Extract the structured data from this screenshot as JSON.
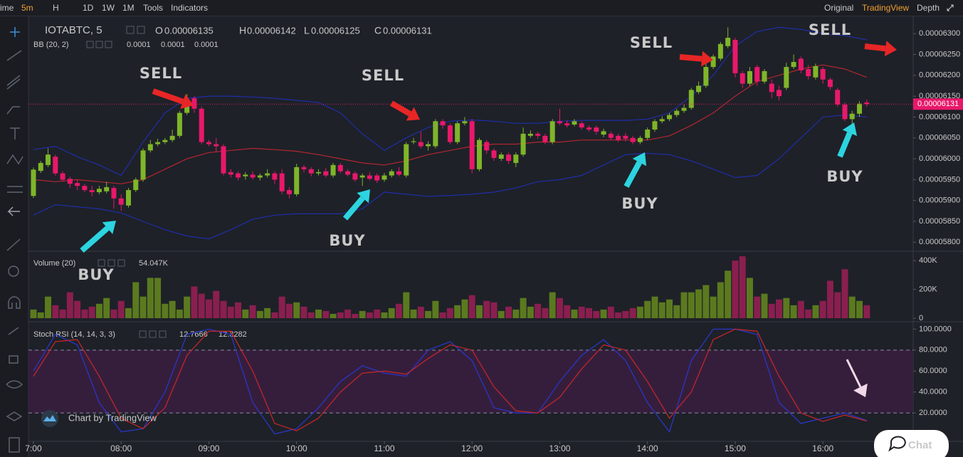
{
  "toolbar": {
    "left": [
      "ime",
      "5m",
      "H",
      "1D",
      "1W",
      "1M",
      "Tools",
      "Indicators"
    ],
    "right": [
      "Original",
      "TradingView",
      "Depth"
    ]
  },
  "branding": {
    "chart_by": "Chart by TradingView",
    "chat": "Chat"
  },
  "chart_data": [
    {
      "type": "candlestick",
      "title": "IOTABTC, 5",
      "ohlc_legend": [
        {
          "label": "O",
          "value": 6.135e-05
        },
        {
          "label": "H",
          "value": 6.142e-05
        },
        {
          "label": "L",
          "value": 6.125e-05
        },
        {
          "label": "C",
          "value": 6.131e-05
        }
      ],
      "colors": [
        "#7fb52a",
        "#e8186a"
      ],
      "xlim": [
        -0.68,
        120.35
      ],
      "xticks": [
        {
          "value": 0,
          "label": "7:00"
        },
        {
          "value": 12,
          "label": "08:00"
        },
        {
          "value": 24,
          "label": "09:00"
        },
        {
          "value": 36,
          "label": "10:00"
        },
        {
          "value": 48,
          "label": "11:00"
        },
        {
          "value": 60,
          "label": "12:00"
        },
        {
          "value": 72,
          "label": "13:00"
        },
        {
          "value": 84,
          "label": "14:00"
        },
        {
          "value": 96,
          "label": "15:00"
        },
        {
          "value": 108,
          "label": "16:00"
        }
      ],
      "ylim": [
        5.78e-05,
        6.343e-05
      ],
      "yticks": [
        {
          "value": 5.8e-05,
          "label": "0.00005800"
        },
        {
          "value": 5.85e-05,
          "label": "0.00005850"
        },
        {
          "value": 5.9e-05,
          "label": "0.00005900"
        },
        {
          "value": 5.95e-05,
          "label": "0.00005950"
        },
        {
          "value": 6e-05,
          "label": "0.00006000"
        },
        {
          "value": 6.05e-05,
          "label": "0.00006050"
        },
        {
          "value": 6.1e-05,
          "label": "0.00006100"
        },
        {
          "value": 6.15e-05,
          "label": "0.00006150"
        },
        {
          "value": 6.2e-05,
          "label": "0.00006200"
        },
        {
          "value": 6.25e-05,
          "label": "0.00006250"
        },
        {
          "value": 6.3e-05,
          "label": "0.00006300"
        }
      ],
      "open": [
        5.911e-05,
        5.971e-05,
        5.985e-05,
        6.005e-05,
        5.965e-05,
        5.952e-05,
        5.942e-05,
        5.935e-05,
        5.925e-05,
        5.92e-05,
        5.922e-05,
        5.93e-05,
        5.905e-05,
        5.888e-05,
        5.925e-05,
        5.95e-05,
        6.02e-05,
        6.035e-05,
        6.04e-05,
        6.045e-05,
        6.055e-05,
        6.11e-05,
        6.145e-05,
        6.12e-05,
        6.04e-05,
        6.035e-05,
        6.03e-05,
        5.968e-05,
        5.965e-05,
        5.958e-05,
        5.962e-05,
        5.955e-05,
        5.96e-05,
        5.965e-05,
        5.965e-05,
        5.925e-05,
        5.915e-05,
        5.98e-05,
        5.975e-05,
        5.965e-05,
        5.97e-05,
        5.96e-05,
        5.985e-05,
        5.97e-05,
        5.965e-05,
        5.955e-05,
        5.96e-05,
        5.96e-05,
        5.95e-05,
        5.96e-05,
        5.97e-05,
        5.96e-05,
        6.04e-05,
        6.04e-05,
        6.03e-05,
        6.03e-05,
        6.09e-05,
        6.08e-05,
        6.04e-05,
        6.085e-05,
        6.09e-05,
        5.975e-05,
        6.04e-05,
        6.02e-05,
        6e-05,
        6.01e-05,
        5.99e-05,
        6.01e-05,
        6.055e-05,
        6.06e-05,
        6.055e-05,
        6.04e-05,
        6.09e-05,
        6.085e-05,
        6.082e-05,
        6.085e-05,
        6.075e-05,
        6.075e-05,
        6.058e-05,
        6.06e-05,
        6.055e-05,
        6.055e-05,
        6.05e-05,
        6.04e-05,
        6.05e-05,
        6.07e-05,
        6.09e-05,
        6.095e-05,
        6.105e-05,
        6.115e-05,
        6.122e-05,
        6.16e-05,
        6.175e-05,
        6.22e-05,
        6.24e-05,
        6.27e-05,
        6.285e-05,
        6.205e-05,
        6.18e-05,
        6.22e-05,
        6.185e-05,
        6.18e-05,
        6.165e-05,
        6.17e-05,
        6.22e-05,
        6.24e-05,
        6.215e-05,
        6.195e-05,
        6.215e-05,
        6.19e-05,
        6.165e-05,
        6.13e-05,
        6.095e-05,
        6.108e-05,
        6.135e-05
      ],
      "high": [
        5.979e-05,
        5.995e-05,
        6.025e-05,
        6.01e-05,
        5.97e-05,
        5.957e-05,
        5.95e-05,
        5.94e-05,
        5.935e-05,
        5.935e-05,
        5.945e-05,
        5.935e-05,
        5.915e-05,
        5.93e-05,
        5.955e-05,
        6.025e-05,
        6.045e-05,
        6.048e-05,
        6.05e-05,
        6.07e-05,
        6.115e-05,
        6.155e-05,
        6.15e-05,
        6.125e-05,
        6.045e-05,
        6.05e-05,
        6.035e-05,
        5.975e-05,
        5.97e-05,
        5.968e-05,
        5.97e-05,
        5.965e-05,
        5.975e-05,
        5.97e-05,
        5.975e-05,
        5.932e-05,
        5.988e-05,
        5.985e-05,
        5.98e-05,
        5.975e-05,
        5.978e-05,
        5.99e-05,
        5.99e-05,
        5.975e-05,
        5.97e-05,
        5.965e-05,
        5.968e-05,
        5.965e-05,
        5.966e-05,
        5.975e-05,
        5.98e-05,
        6.04e-05,
        6.05e-05,
        6.065e-05,
        6.042e-05,
        6.095e-05,
        6.095e-05,
        6.085e-05,
        6.09e-05,
        6.1e-05,
        6.095e-05,
        6.05e-05,
        6.045e-05,
        6.025e-05,
        6.015e-05,
        6.015e-05,
        6.015e-05,
        6.075e-05,
        6.068e-05,
        6.065e-05,
        6.06e-05,
        6.095e-05,
        6.12e-05,
        6.092e-05,
        6.095e-05,
        6.09e-05,
        6.08e-05,
        6.08e-05,
        6.072e-05,
        6.065e-05,
        6.06e-05,
        6.062e-05,
        6.055e-05,
        6.055e-05,
        6.075e-05,
        6.095e-05,
        6.102e-05,
        6.11e-05,
        6.12e-05,
        6.13e-05,
        6.17e-05,
        6.185e-05,
        6.23e-05,
        6.25e-05,
        6.28e-05,
        6.315e-05,
        6.29e-05,
        6.21e-05,
        6.22e-05,
        6.225e-05,
        6.215e-05,
        6.19e-05,
        6.175e-05,
        6.23e-05,
        6.25e-05,
        6.245e-05,
        6.225e-05,
        6.228e-05,
        6.22e-05,
        6.195e-05,
        6.17e-05,
        6.135e-05,
        6.115e-05,
        6.138e-05,
        6.142e-05
      ],
      "low": [
        5.906e-05,
        5.966e-05,
        5.98e-05,
        5.96e-05,
        5.945e-05,
        5.93e-05,
        5.925e-05,
        5.92e-05,
        5.91e-05,
        5.915e-05,
        5.917e-05,
        5.88e-05,
        5.875e-05,
        5.883e-05,
        5.92e-05,
        5.945e-05,
        6.015e-05,
        6.03e-05,
        6.035e-05,
        6.04e-05,
        6.05e-05,
        6.105e-05,
        6.11e-05,
        6.035e-05,
        6.03e-05,
        6.015e-05,
        5.96e-05,
        5.955e-05,
        5.948e-05,
        5.95e-05,
        5.95e-05,
        5.948e-05,
        5.955e-05,
        5.94e-05,
        5.915e-05,
        5.905e-05,
        5.91e-05,
        5.968e-05,
        5.958e-05,
        5.96e-05,
        5.955e-05,
        5.955e-05,
        5.965e-05,
        5.958e-05,
        5.945e-05,
        5.935e-05,
        5.948e-05,
        5.942e-05,
        5.945e-05,
        5.955e-05,
        5.958e-05,
        5.955e-05,
        6.035e-05,
        6.025e-05,
        6.02e-05,
        6.025e-05,
        6.072e-05,
        6.035e-05,
        6.035e-05,
        6.08e-05,
        5.965e-05,
        5.97e-05,
        6.012e-05,
        5.995e-05,
        5.995e-05,
        5.988e-05,
        5.98e-05,
        6.005e-05,
        6.05e-05,
        6.048e-05,
        6.035e-05,
        6.035e-05,
        6.08e-05,
        6.075e-05,
        6.078e-05,
        6.07e-05,
        6.065e-05,
        6.058e-05,
        6.052e-05,
        6.045e-05,
        6.04e-05,
        6.042e-05,
        6.035e-05,
        6.035e-05,
        6.045e-05,
        6.065e-05,
        6.085e-05,
        6.09e-05,
        6.1e-05,
        6.11e-05,
        6.118e-05,
        6.155e-05,
        6.17e-05,
        6.215e-05,
        6.235e-05,
        6.265e-05,
        6.195e-05,
        6.17e-05,
        6.175e-05,
        6.175e-05,
        6.18e-05,
        6.145e-05,
        6.14e-05,
        6.165e-05,
        6.215e-05,
        6.205e-05,
        6.19e-05,
        6.19e-05,
        6.18e-05,
        6.165e-05,
        6.125e-05,
        6.09e-05,
        6.075e-05,
        6.1e-05,
        6.125e-05
      ],
      "close": [
        5.974e-05,
        5.99e-05,
        6.01e-05,
        5.965e-05,
        5.95e-05,
        5.94e-05,
        5.935e-05,
        5.925e-05,
        5.92e-05,
        5.928e-05,
        5.932e-05,
        5.905e-05,
        5.89e-05,
        5.925e-05,
        5.95e-05,
        6.02e-05,
        6.035e-05,
        6.04e-05,
        6.045e-05,
        6.055e-05,
        6.11e-05,
        6.14e-05,
        6.12e-05,
        6.04e-05,
        6.035e-05,
        6.03e-05,
        5.965e-05,
        5.962e-05,
        5.955e-05,
        5.962e-05,
        5.955e-05,
        5.96e-05,
        5.965e-05,
        5.95e-05,
        5.922e-05,
        5.915e-05,
        5.98e-05,
        5.975e-05,
        5.965e-05,
        5.968e-05,
        5.96e-05,
        5.985e-05,
        5.97e-05,
        5.962e-05,
        5.95e-05,
        5.96e-05,
        5.952e-05,
        5.948e-05,
        5.96e-05,
        5.97e-05,
        5.962e-05,
        6.035e-05,
        6.042e-05,
        6.03e-05,
        6.035e-05,
        6.09e-05,
        6.08e-05,
        6.04e-05,
        6.085e-05,
        6.09e-05,
        5.975e-05,
        6.045e-05,
        6.02e-05,
        6.002e-05,
        6.01e-05,
        5.995e-05,
        6.01e-05,
        6.06e-05,
        6.06e-05,
        6.055e-05,
        6.04e-05,
        6.09e-05,
        6.085e-05,
        6.08e-05,
        6.09e-05,
        6.075e-05,
        6.07e-05,
        6.065e-05,
        6.066e-05,
        6.05e-05,
        6.045e-05,
        6.048e-05,
        6.04e-05,
        6.05e-05,
        6.07e-05,
        6.09e-05,
        6.095e-05,
        6.105e-05,
        6.115e-05,
        6.122e-05,
        6.165e-05,
        6.175e-05,
        6.22e-05,
        6.245e-05,
        6.275e-05,
        6.29e-05,
        6.205e-05,
        6.18e-05,
        6.21e-05,
        6.185e-05,
        6.21e-05,
        6.16e-05,
        6.15e-05,
        6.22e-05,
        6.232e-05,
        6.212e-05,
        6.198e-05,
        6.222e-05,
        6.19e-05,
        6.172e-05,
        6.13e-05,
        6.095e-05,
        6.108e-05,
        6.132e-05,
        6.131e-05
      ],
      "bb": {
        "label": "BB (20, 2)",
        "legend_values": [
          0.0001,
          0.0001,
          0.0001
        ],
        "colors": [
          "#1f2ea8",
          "#b3262f",
          "#1f2ea8"
        ],
        "x": [
          0,
          3,
          6,
          9,
          12,
          15,
          18,
          21,
          24,
          27,
          30,
          33,
          36,
          39,
          42,
          45,
          48,
          51,
          54,
          57,
          60,
          63,
          66,
          69,
          72,
          75,
          78,
          81,
          84,
          87,
          90,
          93,
          96,
          99,
          102,
          105,
          108,
          111,
          114
        ],
        "upper": [
          6.022e-05,
          6.03e-05,
          6.005e-05,
          5.985e-05,
          5.96e-05,
          6.04e-05,
          6.11e-05,
          6.145e-05,
          6.15e-05,
          6.15e-05,
          6.148e-05,
          6.145e-05,
          6.14e-05,
          6.135e-05,
          6.11e-05,
          6.06e-05,
          6.02e-05,
          6.05e-05,
          6.075e-05,
          6.09e-05,
          6.093e-05,
          6.09e-05,
          6.085e-05,
          6.085e-05,
          6.09e-05,
          6.092e-05,
          6.092e-05,
          6.092e-05,
          6.095e-05,
          6.11e-05,
          6.15e-05,
          6.2e-05,
          6.27e-05,
          6.305e-05,
          6.315e-05,
          6.31e-05,
          6.3e-05,
          6.295e-05,
          6.285e-05
        ],
        "middle": [
          5.95e-05,
          5.945e-05,
          5.95e-05,
          5.945e-05,
          5.94e-05,
          5.95e-05,
          5.975e-05,
          6e-05,
          6.015e-05,
          6.02e-05,
          6.025e-05,
          6.022e-05,
          6.018e-05,
          6.01e-05,
          6e-05,
          5.99e-05,
          5.985e-05,
          5.995e-05,
          6.01e-05,
          6.02e-05,
          6.03e-05,
          6.035e-05,
          6.035e-05,
          6.04e-05,
          6.04e-05,
          6.045e-05,
          6.045e-05,
          6.045e-05,
          6.045e-05,
          6.055e-05,
          6.08e-05,
          6.11e-05,
          6.15e-05,
          6.185e-05,
          6.2e-05,
          6.215e-05,
          6.225e-05,
          6.215e-05,
          6.195e-05
        ],
        "lower": [
          5.865e-05,
          5.89e-05,
          5.885e-05,
          5.88e-05,
          5.87e-05,
          5.85e-05,
          5.83e-05,
          5.815e-05,
          5.808e-05,
          5.83e-05,
          5.855e-05,
          5.865e-05,
          5.868e-05,
          5.868e-05,
          5.868e-05,
          5.88e-05,
          5.92e-05,
          5.915e-05,
          5.91e-05,
          5.912e-05,
          5.915e-05,
          5.92e-05,
          5.93e-05,
          5.945e-05,
          5.95e-05,
          5.96e-05,
          5.985e-05,
          6.01e-05,
          6.013e-05,
          6.01e-05,
          5.995e-05,
          5.975e-05,
          5.955e-05,
          5.96e-05,
          6e-05,
          6.05e-05,
          6.1e-05,
          6.105e-05,
          6.1e-05
        ]
      },
      "annotations": [
        "SELL",
        "SELL",
        "SELL",
        "SELL",
        "BUY",
        "BUY",
        "BUY",
        "BUY"
      ]
    },
    {
      "type": "bar",
      "title": "Volume (20)",
      "legend_value": "54.047K",
      "colors": [
        "#5b7a1f",
        "#8a1f4f"
      ],
      "ylim": [
        0,
        450000
      ],
      "yticks": [
        0,
        {
          "value": 200000,
          "label": "200K"
        },
        {
          "value": 400000,
          "label": "400K"
        }
      ],
      "values": [
        60000,
        40000,
        150000,
        90000,
        60000,
        180000,
        120000,
        60000,
        80000,
        100000,
        140000,
        60000,
        120000,
        70000,
        250000,
        150000,
        280000,
        280000,
        100000,
        120000,
        60000,
        150000,
        220000,
        170000,
        130000,
        190000,
        120000,
        80000,
        110000,
        60000,
        90000,
        50000,
        70000,
        40000,
        150000,
        100000,
        110000,
        80000,
        40000,
        60000,
        50000,
        30000,
        40000,
        60000,
        30000,
        50000,
        40000,
        60000,
        40000,
        70000,
        100000,
        180000,
        60000,
        80000,
        50000,
        120000,
        40000,
        70000,
        90000,
        130000,
        160000,
        90000,
        120000,
        110000,
        50000,
        80000,
        60000,
        140000,
        80000,
        100000,
        70000,
        180000,
        140000,
        90000,
        60000,
        80000,
        70000,
        50000,
        60000,
        80000,
        40000,
        50000,
        70000,
        80000,
        120000,
        150000,
        110000,
        130000,
        90000,
        180000,
        180000,
        200000,
        230000,
        150000,
        250000,
        330000,
        400000,
        430000,
        280000,
        150000,
        170000,
        100000,
        130000,
        140000,
        90000,
        120000,
        60000,
        90000,
        120000,
        260000,
        180000,
        340000,
        150000,
        120000,
        90000
      ]
    },
    {
      "type": "line",
      "title": "Stoch RSI (14, 14, 3, 3)",
      "ylim": [
        -5,
        105
      ],
      "yticks": [
        {
          "value": 20,
          "label": "20.0000"
        },
        {
          "value": 40,
          "label": "40.0000"
        },
        {
          "value": 60,
          "label": "60.0000"
        },
        {
          "value": 80,
          "label": "80.0000"
        },
        {
          "value": 100,
          "label": "100.0000"
        }
      ],
      "band": [
        20,
        80
      ],
      "band_color": "#3a1d3f",
      "x": [
        0,
        3,
        6,
        9,
        12,
        15,
        18,
        21,
        24,
        27,
        30,
        33,
        36,
        39,
        42,
        45,
        48,
        51,
        54,
        57,
        60,
        63,
        66,
        69,
        72,
        75,
        78,
        81,
        84,
        87,
        90,
        93,
        96,
        99,
        102,
        105,
        108,
        111,
        114
      ],
      "series": [
        {
          "color": "#2936c4",
          "values": [
            60,
            95,
            85,
            30,
            2,
            5,
            40,
            95,
            100,
            95,
            30,
            0,
            5,
            25,
            50,
            65,
            58,
            55,
            80,
            88,
            70,
            25,
            20,
            20,
            50,
            75,
            90,
            70,
            30,
            2,
            70,
            100,
            100,
            95,
            30,
            10,
            15,
            20,
            12.7666
          ]
        },
        {
          "color": "#c0262a",
          "values": [
            55,
            88,
            90,
            55,
            15,
            5,
            25,
            75,
            98,
            98,
            60,
            10,
            3,
            15,
            40,
            58,
            60,
            57,
            72,
            85,
            80,
            45,
            22,
            20,
            35,
            62,
            85,
            80,
            50,
            15,
            40,
            90,
            100,
            98,
            55,
            20,
            12,
            18,
            12.3282
          ]
        }
      ]
    }
  ]
}
